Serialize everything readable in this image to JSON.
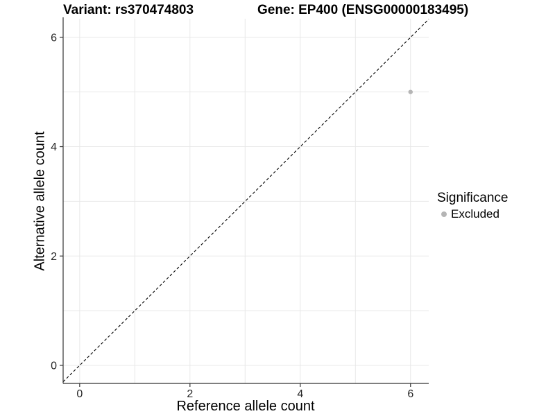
{
  "header": {
    "variant_title": "Variant: rs370474803",
    "gene_title": "Gene: EP400 (ENSG00000183495)"
  },
  "chart_data": {
    "type": "scatter",
    "xlabel": "Reference allele count",
    "ylabel": "Alternative allele count",
    "xlim": [
      -0.3,
      6.33
    ],
    "ylim": [
      -0.33,
      6.34
    ],
    "xticks": [
      0,
      2,
      4,
      6
    ],
    "yticks": [
      0,
      2,
      4,
      6
    ],
    "grid": {
      "show": true,
      "min": 0,
      "max": 6,
      "interval": 1
    },
    "points": [
      {
        "x": 6,
        "y": 5,
        "significance": "Excluded"
      }
    ],
    "identity_line": {
      "label": "y = x",
      "style": "dashed",
      "from": -0.3,
      "to": 6.33
    },
    "legend": {
      "title": "Significance",
      "position": "right",
      "entries": [
        {
          "label": "Excluded",
          "color": "#b5b5b5"
        }
      ]
    },
    "colors": {
      "point": "#b5b5b5",
      "grid": "#e8e8e8",
      "axis": "#333333",
      "identity": "#000000",
      "tick_label": "#262626"
    }
  }
}
